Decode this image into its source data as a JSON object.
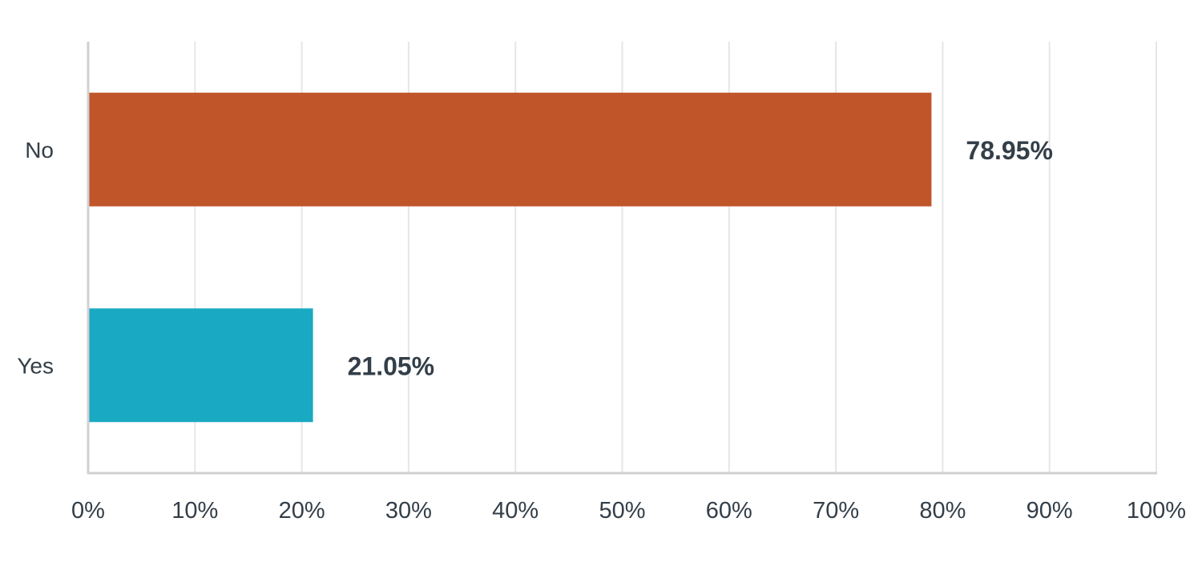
{
  "chart_data": {
    "type": "bar",
    "orientation": "horizontal",
    "categories": [
      "No",
      "Yes"
    ],
    "values": [
      78.95,
      21.05
    ],
    "value_labels": [
      "78.95%",
      "21.05%"
    ],
    "colors": [
      "#c1552a",
      "#1aa9c3"
    ],
    "title": "",
    "xlabel": "",
    "ylabel": "",
    "xlim": [
      0,
      100
    ],
    "x_ticks": [
      0,
      10,
      20,
      30,
      40,
      50,
      60,
      70,
      80,
      90,
      100
    ],
    "x_tick_labels": [
      "0%",
      "10%",
      "20%",
      "30%",
      "40%",
      "50%",
      "60%",
      "70%",
      "80%",
      "90%",
      "100%"
    ],
    "grid": true,
    "legend": "none"
  }
}
